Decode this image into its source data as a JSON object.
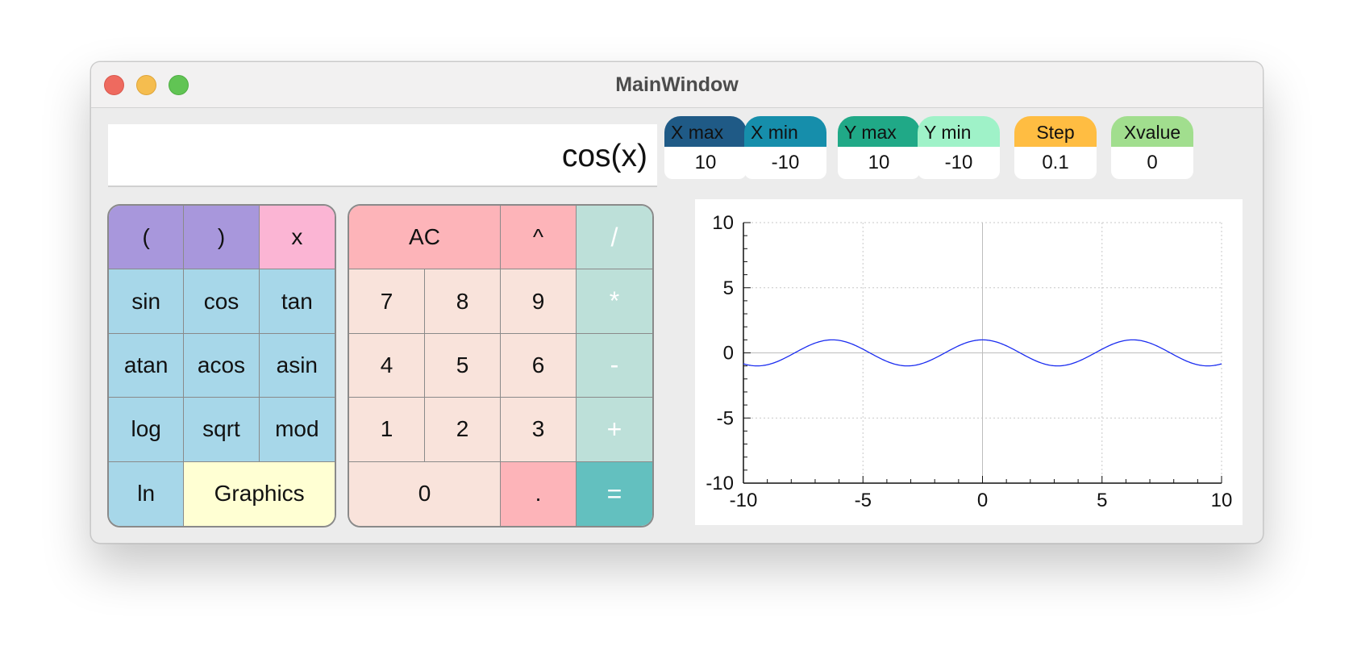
{
  "window": {
    "title": "MainWindow"
  },
  "display": {
    "expression": "cos(x)"
  },
  "function_keys": [
    {
      "label": "(",
      "name": "open-paren-button",
      "cls": "k-purple"
    },
    {
      "label": ")",
      "name": "close-paren-button",
      "cls": "k-purple"
    },
    {
      "label": "x",
      "name": "x-variable-button",
      "cls": "k-pink"
    },
    {
      "label": "sin",
      "name": "sin-button",
      "cls": "k-blue"
    },
    {
      "label": "cos",
      "name": "cos-button",
      "cls": "k-blue"
    },
    {
      "label": "tan",
      "name": "tan-button",
      "cls": "k-blue"
    },
    {
      "label": "atan",
      "name": "atan-button",
      "cls": "k-blue"
    },
    {
      "label": "acos",
      "name": "acos-button",
      "cls": "k-blue"
    },
    {
      "label": "asin",
      "name": "asin-button",
      "cls": "k-blue"
    },
    {
      "label": "log",
      "name": "log-button",
      "cls": "k-blue"
    },
    {
      "label": "sqrt",
      "name": "sqrt-button",
      "cls": "k-blue"
    },
    {
      "label": "mod",
      "name": "mod-button",
      "cls": "k-blue"
    },
    {
      "label": "ln",
      "name": "ln-button",
      "cls": "k-blue"
    },
    {
      "label": "Graphics",
      "name": "graphics-button",
      "cls": "k-yellow"
    }
  ],
  "number_keys": [
    {
      "label": "AC",
      "name": "clear-all-button",
      "cls": "k-salmon"
    },
    {
      "label": "^",
      "name": "power-button",
      "cls": "k-salmon"
    },
    {
      "label": "/",
      "name": "divide-button",
      "cls": "k-mint"
    },
    {
      "label": "7",
      "name": "digit-7-button",
      "cls": "k-cream"
    },
    {
      "label": "8",
      "name": "digit-8-button",
      "cls": "k-cream"
    },
    {
      "label": "9",
      "name": "digit-9-button",
      "cls": "k-cream"
    },
    {
      "label": "*",
      "name": "multiply-button",
      "cls": "k-mint"
    },
    {
      "label": "4",
      "name": "digit-4-button",
      "cls": "k-cream"
    },
    {
      "label": "5",
      "name": "digit-5-button",
      "cls": "k-cream"
    },
    {
      "label": "6",
      "name": "digit-6-button",
      "cls": "k-cream"
    },
    {
      "label": "-",
      "name": "subtract-button",
      "cls": "k-mint"
    },
    {
      "label": "1",
      "name": "digit-1-button",
      "cls": "k-cream"
    },
    {
      "label": "2",
      "name": "digit-2-button",
      "cls": "k-cream"
    },
    {
      "label": "3",
      "name": "digit-3-button",
      "cls": "k-cream"
    },
    {
      "label": "+",
      "name": "add-button",
      "cls": "k-mint"
    },
    {
      "label": "0",
      "name": "digit-0-button",
      "cls": "k-cream"
    },
    {
      "label": ".",
      "name": "decimal-point-button",
      "cls": "k-salmon"
    },
    {
      "label": "=",
      "name": "equals-button",
      "cls": "k-teal"
    }
  ],
  "params": [
    {
      "label": "X max",
      "value": "10",
      "color": "#1f5a86",
      "name": "x-max"
    },
    {
      "label": "X min",
      "value": "-10",
      "color": "#168eab",
      "name": "x-min"
    },
    {
      "label": "Y max",
      "value": "10",
      "color": "#20a987",
      "name": "y-max"
    },
    {
      "label": "Y min",
      "value": "-10",
      "color": "#9ff2c8",
      "name": "y-min"
    },
    {
      "label": "Step",
      "value": "0.1",
      "color": "#ffbd42",
      "name": "step"
    },
    {
      "label": "Xvalue",
      "value": "0",
      "color": "#a1de8e",
      "name": "xvalue"
    }
  ],
  "chart_data": {
    "type": "line",
    "function": "cos(x)",
    "xlim": [
      -10,
      10
    ],
    "ylim": [
      -10,
      10
    ],
    "x_ticks": [
      "-10",
      "-5",
      "0",
      "5",
      "10"
    ],
    "y_ticks": [
      "10",
      "5",
      "0",
      "-5",
      "-10"
    ],
    "grid": true,
    "line_color": "#1a2cf0"
  }
}
